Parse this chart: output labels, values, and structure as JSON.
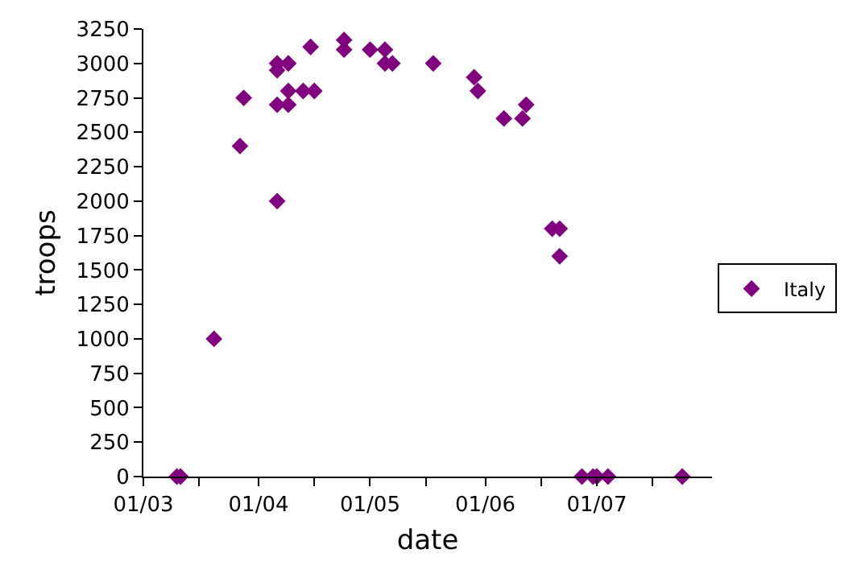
{
  "chart_data": {
    "type": "scatter",
    "xlabel": "date",
    "ylabel": "troops",
    "x": [
      "--03-10",
      "--03-11",
      "--03-20",
      "--03-27",
      "--03-28",
      "--04-06",
      "--04-06",
      "--04-06",
      "--04-06",
      "--04-09",
      "--04-09",
      "--04-09",
      "--04-13",
      "--04-16",
      "--04-15",
      "--04-24",
      "--04-24",
      "--05-01",
      "--05-05",
      "--05-05",
      "--05-07",
      "--05-18",
      "--05-29",
      "--05-30",
      "--06-06",
      "--06-11",
      "--06-12",
      "--06-19",
      "--06-21",
      "--06-21",
      "--06-27",
      "--06-30",
      "--07-01",
      "--07-04",
      "--07-24"
    ],
    "series": [
      {
        "name": "Italy",
        "color": "#800080",
        "values": [
          0,
          0,
          1000,
          2400,
          2750,
          2000,
          2950,
          3000,
          2700,
          3000,
          2700,
          2800,
          2800,
          2800,
          3120,
          3170,
          3100,
          3100,
          3100,
          3000,
          3000,
          3000,
          2900,
          2800,
          2600,
          2600,
          2700,
          1800,
          1800,
          1600,
          0,
          0,
          0,
          0,
          0
        ]
      }
    ],
    "xlim": [
      "--03-01",
      "--08-01"
    ],
    "xticks": [
      {
        "value": "--03-01",
        "label": "01/03"
      },
      {
        "value": "--03-16",
        "label": null
      },
      {
        "value": "--04-01",
        "label": "01/04"
      },
      {
        "value": "--04-16",
        "label": null
      },
      {
        "value": "--05-01",
        "label": "01/05"
      },
      {
        "value": "--05-16",
        "label": null
      },
      {
        "value": "--06-01",
        "label": "01/06"
      },
      {
        "value": "--06-16",
        "label": null
      },
      {
        "value": "--07-01",
        "label": "01/07"
      },
      {
        "value": "--07-16",
        "label": null
      }
    ],
    "ylim": [
      0,
      3250
    ],
    "yticks": [
      0,
      250,
      500,
      750,
      1000,
      1250,
      1500,
      1750,
      2000,
      2250,
      2500,
      2750,
      3000,
      3250
    ],
    "grid": false,
    "legend": "right",
    "marker": "diamond"
  }
}
